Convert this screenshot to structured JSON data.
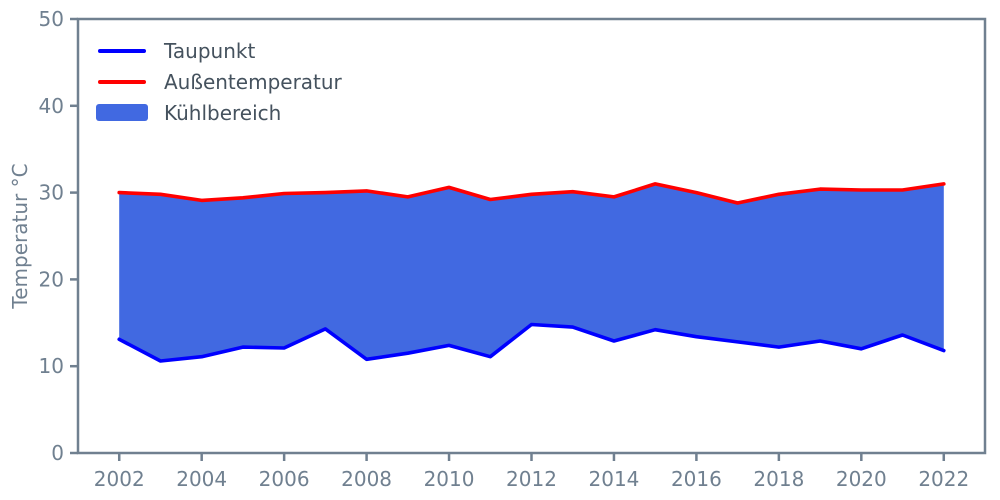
{
  "chart_data": {
    "type": "area",
    "title": "",
    "xlabel": "",
    "ylabel": "Temperatur °C",
    "x": [
      2002,
      2003,
      2004,
      2005,
      2006,
      2007,
      2008,
      2009,
      2010,
      2011,
      2012,
      2013,
      2014,
      2015,
      2016,
      2017,
      2018,
      2019,
      2020,
      2021,
      2022
    ],
    "series": [
      {
        "name": "Taupunkt",
        "color": "#0000ff",
        "values": [
          13.1,
          10.6,
          11.1,
          12.2,
          12.1,
          14.3,
          10.8,
          11.5,
          12.4,
          11.1,
          14.8,
          14.5,
          12.9,
          14.2,
          13.4,
          12.8,
          12.2,
          12.9,
          12.0,
          13.6,
          11.8
        ]
      },
      {
        "name": "Außentemperatur",
        "color": "#ff0000",
        "values": [
          30.0,
          29.8,
          29.1,
          29.4,
          29.9,
          30.0,
          30.2,
          29.5,
          30.6,
          29.2,
          29.8,
          30.1,
          29.5,
          31.0,
          30.0,
          28.8,
          29.8,
          30.4,
          30.3,
          30.3,
          31.0
        ]
      }
    ],
    "fill_between": {
      "name": "Kühlbereich",
      "color": "#4169e1",
      "upper": "Außentemperatur",
      "lower": "Taupunkt"
    },
    "xlim": [
      2001,
      2023
    ],
    "ylim": [
      0,
      50
    ],
    "xticks": [
      2002,
      2004,
      2006,
      2008,
      2010,
      2012,
      2014,
      2016,
      2018,
      2020,
      2022
    ],
    "yticks": [
      0,
      10,
      20,
      30,
      40,
      50
    ],
    "grid": false,
    "legend": {
      "position": "upper-left",
      "entries": [
        {
          "label": "Taupunkt",
          "swatch": "line",
          "color": "#0000ff"
        },
        {
          "label": "Außentemperatur",
          "swatch": "line",
          "color": "#ff0000"
        },
        {
          "label": "Kühlbereich",
          "swatch": "patch",
          "color": "#4169e1"
        }
      ]
    },
    "colors": {
      "axis": "#708090",
      "tick_labels": "#708090",
      "axis_label": "#708090",
      "legend_text": "#45525e",
      "background": "#ffffff"
    }
  }
}
